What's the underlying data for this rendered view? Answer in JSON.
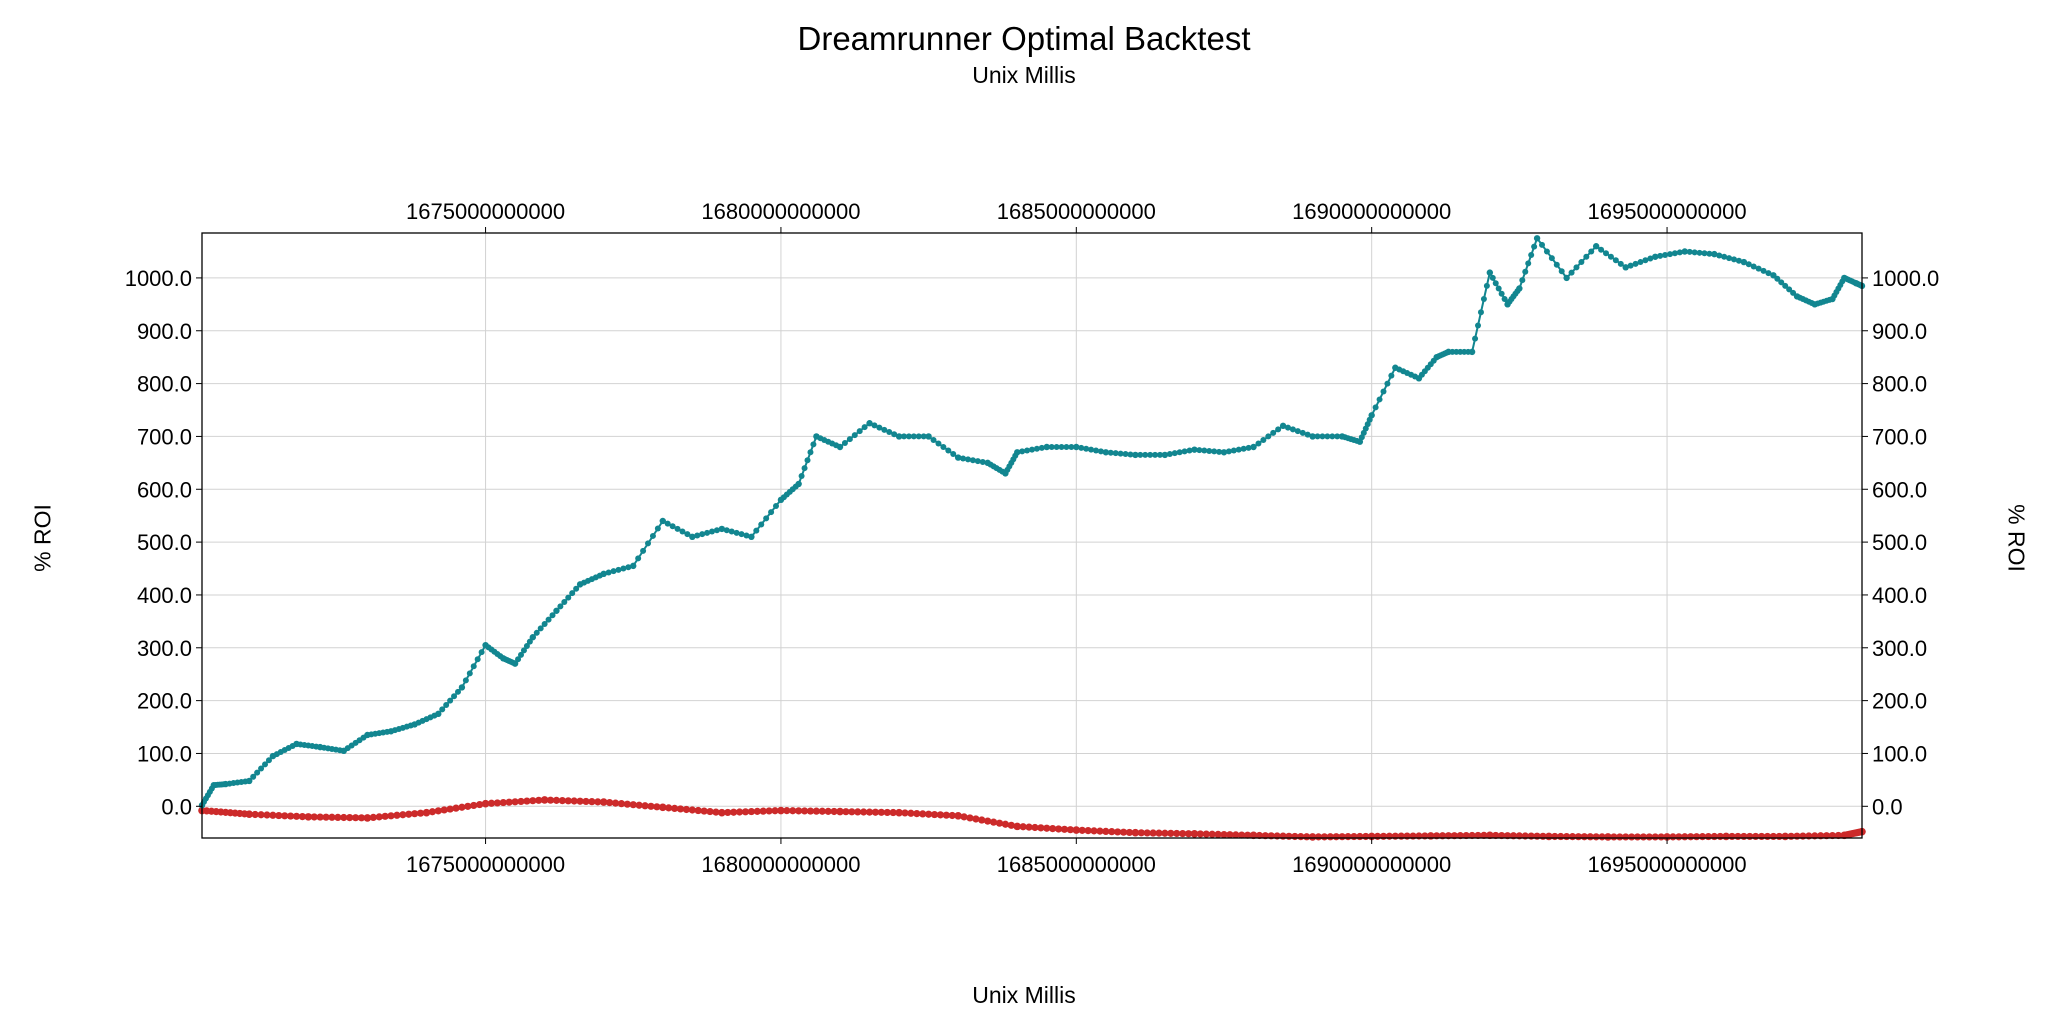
{
  "chart_data": {
    "type": "line",
    "title": "Dreamrunner Optimal Backtest",
    "subtitle": "Unix Millis",
    "xlabel": "Unix Millis",
    "ylabel": "% ROI",
    "xlim": [
      1670200000000,
      1698300000000
    ],
    "ylim": [
      -60,
      1085
    ],
    "x_ticks": [
      1675000000000,
      1680000000000,
      1685000000000,
      1690000000000,
      1695000000000
    ],
    "x_tick_labels": [
      "1675000000000",
      "1680000000000",
      "1685000000000",
      "1690000000000",
      "1695000000000"
    ],
    "y_ticks": [
      0,
      100,
      200,
      300,
      400,
      500,
      600,
      700,
      800,
      900,
      1000
    ],
    "y_tick_labels": [
      "0.0",
      "100.0",
      "200.0",
      "300.0",
      "400.0",
      "500.0",
      "600.0",
      "700.0",
      "800.0",
      "900.0",
      "1000.0"
    ],
    "grid": true,
    "legend": "none",
    "colors": {
      "series1": "#128690",
      "series2": "#cc2a2a",
      "grid": "#d2d2d2",
      "frame": "#000000"
    },
    "series": [
      {
        "x": [
          1670200000000,
          1670400000000,
          1670600000000,
          1671000000000,
          1671400000000,
          1671800000000,
          1672200000000,
          1672600000000,
          1673000000000,
          1673400000000,
          1673800000000,
          1674200000000,
          1674600000000,
          1675000000000,
          1675300000000,
          1675500000000,
          1675800000000,
          1676200000000,
          1676600000000,
          1677000000000,
          1677500000000,
          1678000000000,
          1678500000000,
          1679000000000,
          1679500000000,
          1680000000000,
          1680300000000,
          1680600000000,
          1681000000000,
          1681500000000,
          1682000000000,
          1682500000000,
          1683000000000,
          1683500000000,
          1683800000000,
          1684000000000,
          1684500000000,
          1685000000000,
          1685500000000,
          1686000000000,
          1686500000000,
          1687000000000,
          1687500000000,
          1688000000000,
          1688500000000,
          1689000000000,
          1689500000000,
          1689800000000,
          1690000000000,
          1690400000000,
          1690800000000,
          1691100000000,
          1691300000000,
          1691700000000,
          1692000000000,
          1692300000000,
          1692500000000,
          1692800000000,
          1693300000000,
          1693800000000,
          1694300000000,
          1694800000000,
          1695300000000,
          1695800000000,
          1696300000000,
          1696800000000,
          1697200000000,
          1697500000000,
          1697800000000,
          1698000000000,
          1698200000000,
          1698300000000
        ],
        "y": [
          2,
          40,
          42,
          48,
          95,
          118,
          112,
          105,
          135,
          142,
          155,
          175,
          225,
          305,
          280,
          270,
          320,
          370,
          420,
          440,
          455,
          540,
          510,
          525,
          510,
          580,
          610,
          700,
          680,
          725,
          700,
          700,
          660,
          650,
          630,
          670,
          680,
          680,
          670,
          665,
          665,
          675,
          670,
          680,
          720,
          700,
          700,
          690,
          740,
          830,
          810,
          850,
          860,
          860,
          1010,
          950,
          980,
          1075,
          1000,
          1060,
          1020,
          1040,
          1050,
          1045,
          1030,
          1005,
          965,
          950,
          960,
          1000,
          990,
          985
        ]
      },
      {
        "x": [
          1670200000000,
          1671000000000,
          1672000000000,
          1673000000000,
          1674000000000,
          1675000000000,
          1676000000000,
          1677000000000,
          1678000000000,
          1679000000000,
          1680000000000,
          1681000000000,
          1682000000000,
          1683000000000,
          1684000000000,
          1685000000000,
          1686000000000,
          1687000000000,
          1688000000000,
          1689000000000,
          1690000000000,
          1691000000000,
          1692000000000,
          1693000000000,
          1694000000000,
          1695000000000,
          1696000000000,
          1697000000000,
          1698000000000,
          1698300000000
        ],
        "y": [
          -8,
          -15,
          -20,
          -22,
          -12,
          5,
          12,
          8,
          -2,
          -12,
          -8,
          -10,
          -12,
          -18,
          -38,
          -45,
          -50,
          -52,
          -55,
          -58,
          -57,
          -56,
          -55,
          -57,
          -58,
          -58,
          -57,
          -57,
          -55,
          -48
        ]
      }
    ]
  }
}
